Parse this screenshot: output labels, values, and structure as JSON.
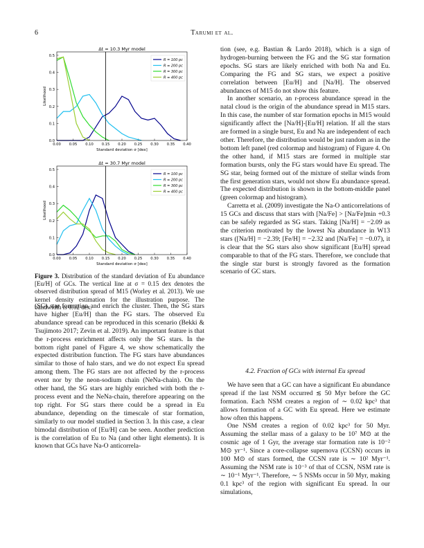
{
  "header": {
    "page_number": "6",
    "running_head": "Tarumi et al."
  },
  "chart_data": [
    {
      "type": "line",
      "title": "Δt = 10.3 Myr model",
      "x_label": "Standard deviation σ [dex]",
      "y_label": "Likelihood",
      "x": [
        0,
        0.02,
        0.04,
        0.06,
        0.08,
        0.1,
        0.12,
        0.14,
        0.16,
        0.18,
        0.2,
        0.22,
        0.24,
        0.26,
        0.28,
        0.3,
        0.32,
        0.34,
        0.36,
        0.38,
        0.4
      ],
      "series": [
        {
          "name": "R = 100 pc",
          "color": "#00008b",
          "values": [
            0,
            0,
            0,
            0,
            0,
            0.02,
            0.08,
            0.14,
            0.16,
            0.2,
            0.26,
            0.24,
            0.17,
            0.13,
            0.12,
            0.13,
            0.09,
            0.04,
            0.01,
            0,
            null
          ]
        },
        {
          "name": "R = 200 pc",
          "color": "#1ebfef",
          "values": [
            0.13,
            0.17,
            0.17,
            0.2,
            0.26,
            0.27,
            0.22,
            0.15,
            0.1,
            0.07,
            0.04,
            0.02,
            0.01,
            0,
            null,
            null,
            null,
            null,
            null,
            null,
            null
          ]
        },
        {
          "name": "R = 300 pc",
          "color": "#2edc2e",
          "values": [
            0.47,
            0.49,
            0.36,
            0.22,
            0.14,
            0.09,
            0.05,
            0.02,
            0,
            null,
            null,
            null,
            null,
            null,
            null,
            null,
            null,
            null,
            null,
            null,
            null
          ]
        },
        {
          "name": "R = 400 pc",
          "color": "#9acd32",
          "values": [
            0.48,
            0.49,
            0.3,
            0.1,
            0.02,
            0,
            null,
            null,
            null,
            null,
            null,
            null,
            null,
            null,
            null,
            null,
            null,
            null,
            null,
            null,
            null
          ]
        }
      ],
      "vline": 0.15,
      "xlim": [
        0,
        0.4
      ],
      "ylim": [
        0,
        0.52
      ],
      "xticks": [
        {
          "value": 0,
          "label": "0.00"
        },
        {
          "value": 0.05,
          "label": "0.05"
        },
        {
          "value": 0.1,
          "label": "0.10"
        },
        {
          "value": 0.15,
          "label": "0.15"
        },
        {
          "value": 0.2,
          "label": "0.20"
        },
        {
          "value": 0.25,
          "label": "0.25"
        },
        {
          "value": 0.3,
          "label": "0.30"
        },
        {
          "value": 0.35,
          "label": "0.35"
        },
        {
          "value": 0.4,
          "label": "0.40"
        }
      ],
      "yticks": [
        {
          "value": 0,
          "label": "0.0"
        },
        0.1,
        0.2,
        0.3,
        0.4,
        0.5
      ],
      "legend": "upper right"
    },
    {
      "type": "line",
      "title": "Δt = 30.7 Myr model",
      "x_label": "Standard deviation σ [dex]",
      "y_label": "Likelihood",
      "x": [
        0,
        0.02,
        0.04,
        0.06,
        0.08,
        0.1,
        0.12,
        0.14,
        0.16,
        0.18,
        0.2,
        0.22,
        0.24
      ],
      "series": [
        {
          "name": "R = 100 pc",
          "color": "#00008b",
          "values": [
            0,
            0,
            0.01,
            0.05,
            0.12,
            0.26,
            0.35,
            0.33,
            0.2,
            0.1,
            0.06,
            0.02,
            0
          ]
        },
        {
          "name": "R = 200 pc",
          "color": "#1ebfef",
          "values": [
            0.06,
            0.14,
            0.17,
            0.18,
            0.26,
            0.33,
            0.26,
            0.15,
            0.09,
            0.05,
            0.02,
            0,
            null
          ]
        },
        {
          "name": "R = 300 pc",
          "color": "#2edc2e",
          "values": [
            0.25,
            0.29,
            0.26,
            0.22,
            0.17,
            0.14,
            0.1,
            0.11,
            0.11,
            0.08,
            0.03,
            0.01,
            0
          ]
        },
        {
          "name": "R = 400 pc",
          "color": "#9acd32",
          "values": [
            0.21,
            0.25,
            0.21,
            0.18,
            0.18,
            0.15,
            0.08,
            0.03,
            0.01,
            0,
            null,
            null,
            null
          ]
        }
      ],
      "vline": 0.15,
      "xlim": [
        0,
        0.4
      ],
      "ylim": [
        0,
        0.52
      ],
      "xticks": [
        {
          "value": 0,
          "label": "0.00"
        },
        {
          "value": 0.05,
          "label": "0.05"
        },
        {
          "value": 0.1,
          "label": "0.10"
        },
        {
          "value": 0.15,
          "label": "0.15"
        },
        {
          "value": 0.2,
          "label": "0.20"
        },
        {
          "value": 0.25,
          "label": "0.25"
        },
        {
          "value": 0.3,
          "label": "0.30"
        },
        {
          "value": 0.35,
          "label": "0.35"
        },
        {
          "value": 0.4,
          "label": "0.40"
        }
      ],
      "yticks": [
        {
          "value": 0,
          "label": "0.0"
        },
        0.1,
        0.2,
        0.3,
        0.4,
        0.5
      ],
      "legend": "upper right"
    }
  ],
  "caption": {
    "label": "Figure 3.",
    "text": "Distribution of the standard deviation of Eu abundance [Eu/H] of GCs. The vertical line at σ = 0.15 dex denotes the observed distribution spread of M15 (Worley et al. 2013). We use kernel density estimation for the illustration purpose. The bandwidth is 0.02 dex."
  },
  "left_column": [
    "(SG) star formation and enrich the cluster. Then, the SG stars have higher [Eu/H] than the FG stars. The observed Eu abundance spread can be reproduced in this scenario (Bekki & Tsujimoto 2017; Zevin et al. 2019). An important feature is that the r-process enrichment affects only the SG stars. In the bottom right panel of Figure 4, we show schematically the expected distribution function. The FG stars have abundances similar to those of halo stars, and we do not expect Eu spread among them. The FG stars are not affected by the r-process event nor by the neon-sodium chain (NeNa-chain). On the other hand, the SG stars are highly enriched with both the r-process event and the NeNa-chain, therefore appearing on the top right. For SG stars there could be a spread in Eu abundance, depending on the timescale of star formation, similarly to our model studied in Section 3. In this case, a clear bimodal distribution of [Eu/H] can be seen. Another prediction is the correlation of Eu to Na (and other light elements). It is known that GCs have Na-O anticorrela-"
  ],
  "right_column": [
    "tion (see, e.g. Bastian & Lardo 2018), which is a sign of hydrogen-burning between the FG and the SG star formation epochs. SG stars are likely enriched with both Na and Eu. Comparing the FG and SG stars, we expect a positive correlation between [Eu/H] and [Na/H]. The observed abundances of M15 do not show this feature.",
    "In another scenario, an r-process abundance spread in the natal cloud is the origin of the abundance spread in M15 stars. In this case, the number of star formation epochs in M15 would significantly affect the [Na/H]-[Eu/H] relation. If all the stars are formed in a single burst, Eu and Na are independent of each other. Therefore, the distribution would be just random as in the bottom left panel (red colormap and histogram) of Figure 4. On the other hand, if M15 stars are formed in multiple star formation bursts, only the FG stars would have Eu spread. The SG star, being formed out of the mixture of stellar winds from the first generation stars, would not show Eu abundance spread. The expected distribution is shown in the bottom-middle panel (green colormap and histogram).",
    "Carretta et al. (2009) investigate the Na-O anticorrelations of 15 GCs and discuss that stars with [Na/Fe] > [Na/Fe]min +0.3 can be safely regarded as SG stars. Taking [Na/H] = −2.09 as the criterion motivated by the lowest Na abundance in W13 stars ([Na/H] = −2.39; [Fe/H] = −2.32 and [Na/Fe] = −0.07), it is clear that the SG stars also show significant [Eu/H] spread comparable to that of the FG stars. Therefore, we conclude that the single star burst is strongly favored as the formation scenario of GC stars."
  ],
  "section": {
    "heading": "4.2. Fraction of GCs with internal Eu spread",
    "paragraphs": [
      "We have seen that a GC can have a significant Eu abundance spread if the last NSM occurred ≲ 50 Myr before the GC formation. Each NSM creates a region of ∼ 0.02 kpc³ that allows formation of a GC with Eu spread. Here we estimate how often this happens.",
      "One NSM creates a region of 0.02 kpc³ for 50 Myr. Assuming the stellar mass of a galaxy to be 10⁷ M⊙ at the cosmic age of 1 Gyr, the average star formation rate is 10⁻² M⊙ yr⁻¹. Since a core-collapse supernova (CCSN) occurs in 100 M⊙ of stars formed, the CCSN rate is ∼ 10² Myr⁻¹. Assuming the NSM rate is 10⁻³ of that of CCSN, NSM rate is ∼ 10⁻¹ Myr⁻¹. Therefore, ∼ 5 NSMs occur in 50 Myr, making 0.1 kpc³ of the region with significant Eu spread. In our simulations,"
    ]
  }
}
